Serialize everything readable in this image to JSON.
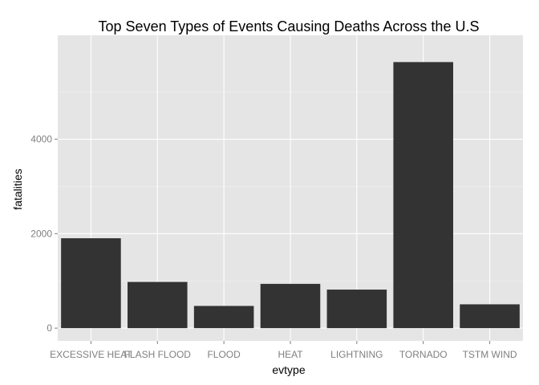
{
  "chart_data": {
    "type": "bar",
    "title": "Top Seven Types of Events Causing Deaths Across the U.S",
    "xlabel": "evtype",
    "ylabel": "fatalities",
    "categories": [
      "EXCESSIVE HEAT",
      "FLASH FLOOD",
      "FLOOD",
      "HEAT",
      "LIGHTNING",
      "TORNADO",
      "TSTM WIND"
    ],
    "values": [
      1903,
      978,
      470,
      937,
      816,
      5633,
      504
    ],
    "ylim": [
      -270,
      6200
    ],
    "y_ticks": [
      0,
      2000,
      4000
    ],
    "y_tick_labels": [
      "0",
      "2000",
      "4000"
    ],
    "grid": true,
    "legend": "none",
    "colors": {
      "bar": "#333333",
      "panel": "#e5e5e5",
      "grid_major": "#ffffff",
      "grid_minor": "#f2f2f2",
      "tick_text": "#7f7f7f",
      "title_text": "#000000"
    }
  }
}
